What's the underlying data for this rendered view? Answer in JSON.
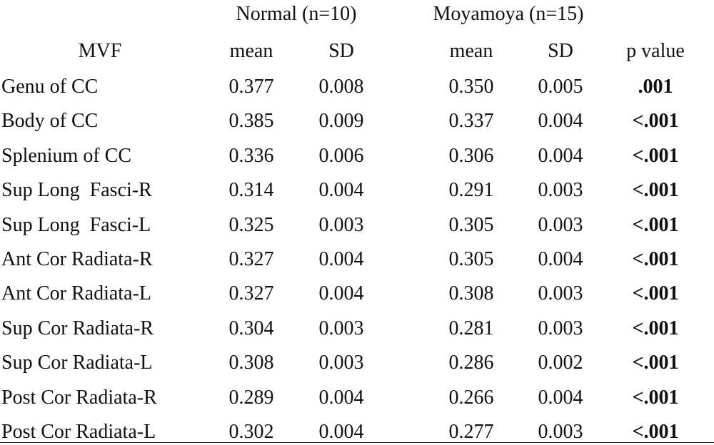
{
  "table": {
    "groups": [
      "Normal (n=10)",
      "Moyamoya (n=15)"
    ],
    "columns": [
      "MVF",
      "mean",
      "SD",
      "mean",
      "SD",
      "p value"
    ],
    "rows": [
      [
        "Genu of CC",
        "0.377",
        "0.008",
        "0.350",
        "0.005",
        ".001"
      ],
      [
        "Body of CC",
        "0.385",
        "0.009",
        "0.337",
        "0.004",
        "<.001"
      ],
      [
        "Splenium of CC",
        "0.336",
        "0.006",
        "0.306",
        "0.004",
        "<.001"
      ],
      [
        "Sup Long  Fasci-R",
        "0.314",
        "0.004",
        "0.291",
        "0.003",
        "<.001"
      ],
      [
        "Sup Long  Fasci-L",
        "0.325",
        "0.003",
        "0.305",
        "0.003",
        "<.001"
      ],
      [
        "Ant Cor Radiata-R",
        "0.327",
        "0.004",
        "0.305",
        "0.004",
        "<.001"
      ],
      [
        "Ant Cor Radiata-L",
        "0.327",
        "0.004",
        "0.308",
        "0.003",
        "<.001"
      ],
      [
        "Sup Cor Radiata-R",
        "0.304",
        "0.003",
        "0.281",
        "0.003",
        "<.001"
      ],
      [
        "Sup Cor Radiata-L",
        "0.308",
        "0.003",
        "0.286",
        "0.002",
        "<.001"
      ],
      [
        "Post Cor Radiata-R",
        "0.289",
        "0.004",
        "0.266",
        "0.004",
        "<.001"
      ],
      [
        "Post Cor Radiata-L",
        "0.302",
        "0.004",
        "0.277",
        "0.003",
        "<.001"
      ]
    ]
  }
}
